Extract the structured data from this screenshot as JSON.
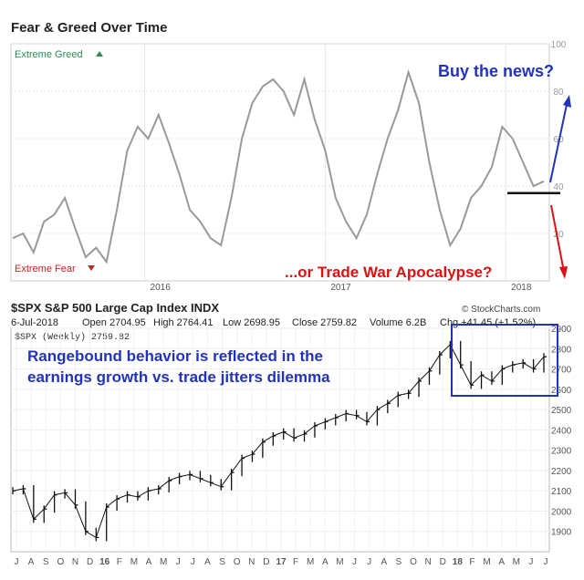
{
  "chart_data": [
    {
      "type": "line",
      "title": "Fear & Greed Over Time",
      "upper_label": "Extreme Greed",
      "lower_label": "Extreme Fear",
      "ylim": [
        0,
        100
      ],
      "yticks": [
        "20",
        "40",
        "60",
        "80",
        "100"
      ],
      "year_labels": [
        "2016",
        "2017",
        "2018"
      ],
      "colors": {
        "line": "#999999",
        "greed": "#2e8b57",
        "fear": "#cc2222"
      },
      "series": [
        {
          "x": [
            0,
            3,
            6,
            9,
            12,
            15,
            18,
            21,
            24,
            27,
            30,
            33,
            36,
            39,
            42,
            45,
            48,
            51,
            54,
            57,
            60,
            63,
            66,
            69,
            72,
            75,
            78,
            81,
            84,
            87,
            90,
            93,
            96,
            99,
            102,
            105,
            108,
            111,
            114,
            117,
            120,
            123,
            126,
            129,
            132,
            135,
            138,
            141,
            144,
            147,
            150,
            153
          ],
          "values": [
            18,
            20,
            12,
            25,
            28,
            35,
            22,
            10,
            14,
            8,
            30,
            55,
            65,
            60,
            70,
            58,
            45,
            30,
            25,
            18,
            15,
            35,
            60,
            75,
            82,
            85,
            80,
            70,
            85,
            68,
            55,
            35,
            25,
            18,
            28,
            45,
            60,
            72,
            88,
            75,
            50,
            30,
            15,
            22,
            35,
            40,
            48,
            65,
            60,
            50,
            40,
            42
          ]
        }
      ],
      "annotations": [
        "Buy the news?",
        "...or Trade War Apocalypse?"
      ],
      "support_level": 37
    },
    {
      "type": "bar",
      "title": "$SPX S&P 500 Large Cap Index INDX",
      "source": "© StockCharts.com",
      "date": "6-Jul-2018",
      "open": "Open 2704.95",
      "high": "High 2764.41",
      "low": "Low 2698.95",
      "close": "Close 2759.82",
      "volume": "Volume 6.2B",
      "change": "Chg +41.45 (+1.52%)",
      "legend": "$SPX (Weekly) 2759.82",
      "ylim": [
        1800,
        2900
      ],
      "yticks": [
        "1900",
        "2000",
        "2100",
        "2200",
        "2300",
        "2400",
        "2500",
        "2600",
        "2700",
        "2800",
        "2900"
      ],
      "months": [
        "J",
        "A",
        "S",
        "O",
        "N",
        "D",
        "16",
        "F",
        "M",
        "A",
        "M",
        "J",
        "J",
        "A",
        "S",
        "O",
        "N",
        "D",
        "17",
        "F",
        "M",
        "A",
        "M",
        "J",
        "J",
        "A",
        "S",
        "O",
        "N",
        "D",
        "18",
        "F",
        "M",
        "A",
        "M",
        "J",
        "J"
      ],
      "series": [
        {
          "x": [
            0,
            3,
            6,
            9,
            12,
            15,
            18,
            21,
            24,
            27,
            30,
            33,
            36,
            39,
            42,
            45,
            48,
            51,
            54,
            57,
            60,
            63,
            66,
            69,
            72,
            75,
            78,
            81,
            84,
            87,
            90,
            93,
            96,
            99,
            102,
            105,
            108,
            111,
            114,
            117,
            120,
            123,
            126,
            129,
            132,
            135,
            138,
            141,
            144,
            147,
            150,
            153
          ],
          "values": [
            2100,
            2110,
            1960,
            2010,
            2080,
            2090,
            2030,
            1900,
            1870,
            2020,
            2060,
            2080,
            2070,
            2100,
            2110,
            2150,
            2170,
            2180,
            2160,
            2140,
            2120,
            2190,
            2260,
            2280,
            2340,
            2370,
            2390,
            2360,
            2380,
            2420,
            2440,
            2460,
            2480,
            2470,
            2440,
            2500,
            2530,
            2570,
            2580,
            2640,
            2690,
            2770,
            2820,
            2720,
            2620,
            2670,
            2640,
            2700,
            2720,
            2730,
            2700,
            2760
          ]
        }
      ],
      "annotation": "Rangebound behavior is reflected in the earnings growth vs. trade jitters dilemma",
      "annotation_lines": [
        "Rangebound behavior is reflected in the",
        "earnings growth vs. trade jitters dilemma"
      ]
    }
  ]
}
